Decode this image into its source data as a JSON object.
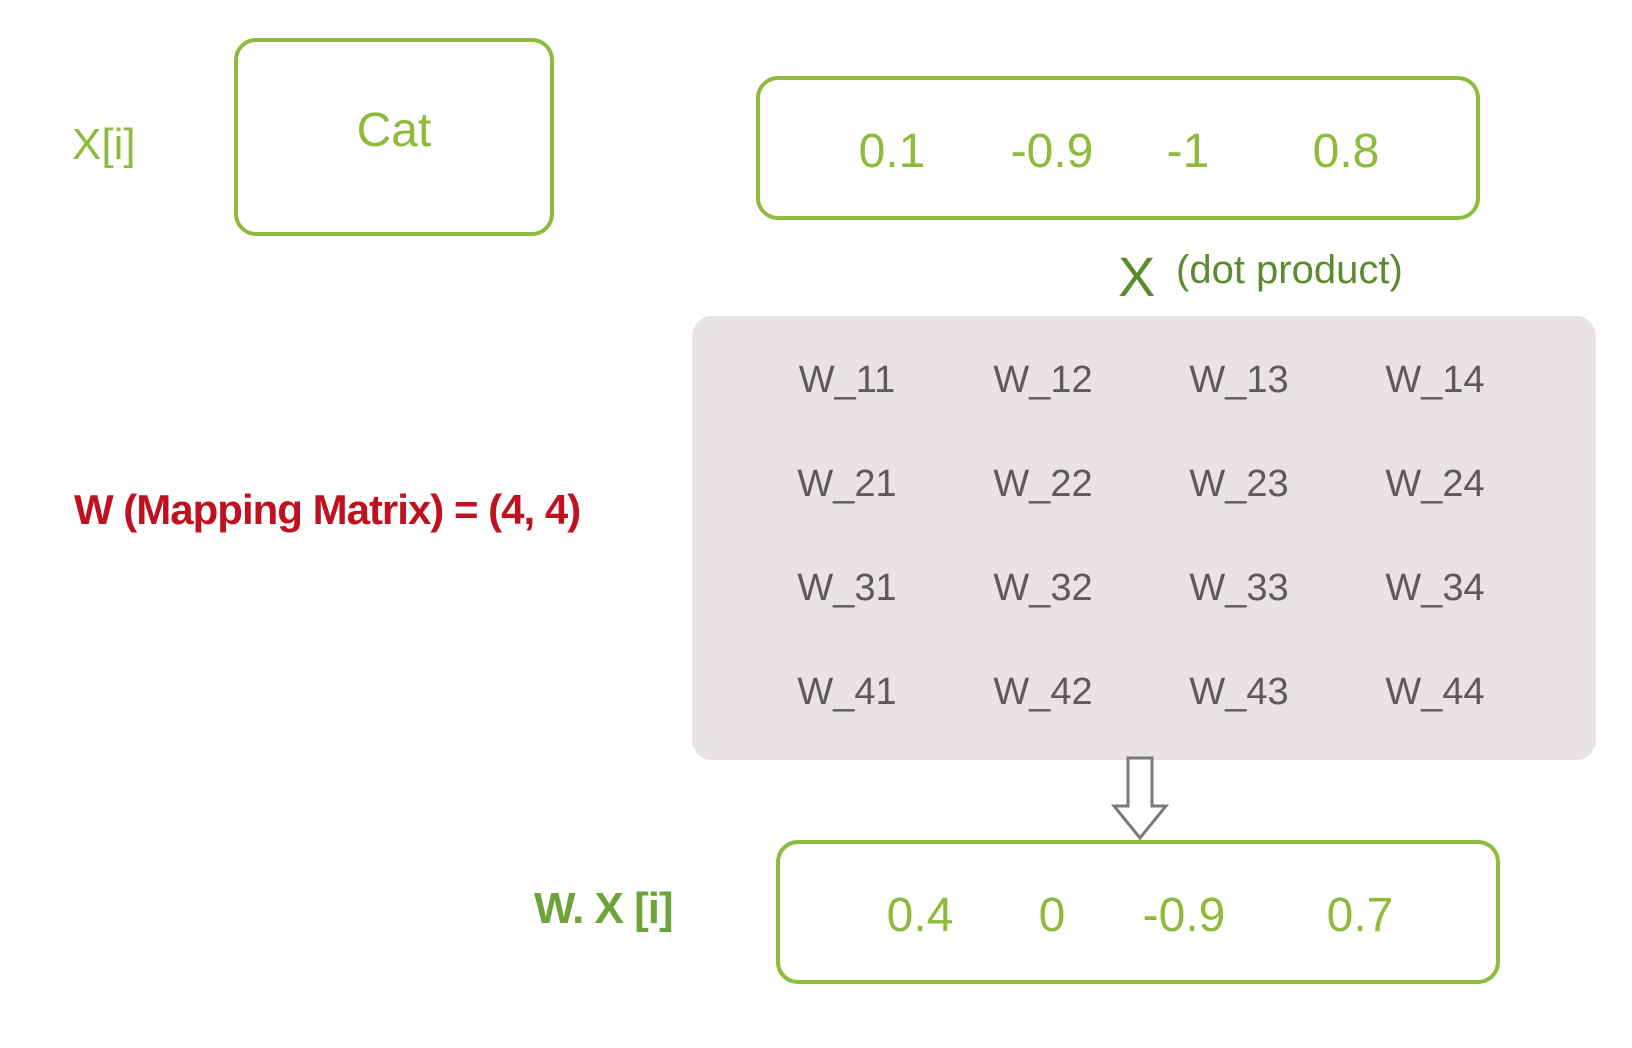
{
  "input": {
    "label": "X[i]",
    "word": "Cat",
    "embedding": [
      "0.1",
      "-0.9",
      "-1",
      "0.8"
    ]
  },
  "operation": {
    "symbol": "X",
    "text": "(dot product)"
  },
  "matrix": {
    "label": "W (Mapping Matrix) = (4, 4)",
    "rows": [
      [
        "W_11",
        "W_12",
        "W_13",
        "W_14"
      ],
      [
        "W_21",
        "W_22",
        "W_23",
        "W_24"
      ],
      [
        "W_31",
        "W_32",
        "W_33",
        "W_34"
      ],
      [
        "W_41",
        "W_42",
        "W_43",
        "W_44"
      ]
    ]
  },
  "output": {
    "label": "W. X [i]",
    "values": [
      "0.4",
      "0",
      "-0.9",
      "0.7"
    ]
  },
  "colors": {
    "green": "#8dbb3c",
    "dark_green": "#5c8a2e",
    "red": "#c0111f",
    "matrix_bg": "#e8e4e6",
    "matrix_text": "#5e5a5c"
  }
}
